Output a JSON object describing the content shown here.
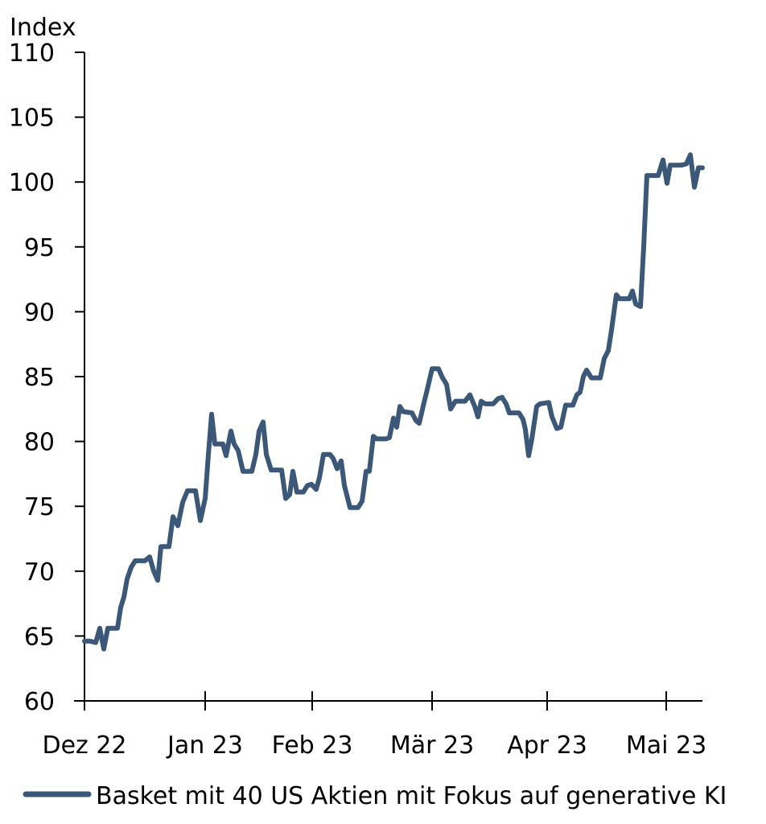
{
  "chart_data": {
    "type": "line",
    "title": "",
    "ylabel": "Index",
    "xlabel": "",
    "ylim": [
      60,
      110
    ],
    "yticks": [
      60,
      65,
      70,
      75,
      80,
      85,
      90,
      95,
      100,
      105,
      110
    ],
    "xtick_labels": [
      "Dez 22",
      "Jan 23",
      "Feb 23",
      "Mär 23",
      "Apr 23",
      "Mai 23"
    ],
    "grid": false,
    "legend_position": "bottom",
    "series": [
      {
        "name": "Basket mit 40 US Aktien mit Fokus auf generative KI",
        "color": "#3b5878",
        "points": [
          [
            105,
            64.6
          ],
          [
            112,
            64.6
          ],
          [
            119,
            64.5
          ],
          [
            124,
            65.6
          ],
          [
            129,
            64.0
          ],
          [
            134,
            65.6
          ],
          [
            146,
            65.6
          ],
          [
            150,
            67.2
          ],
          [
            154,
            68.0
          ],
          [
            158,
            69.4
          ],
          [
            163,
            70.3
          ],
          [
            168,
            70.8
          ],
          [
            180,
            70.8
          ],
          [
            186,
            71.1
          ],
          [
            191,
            70.0
          ],
          [
            196,
            69.3
          ],
          [
            200,
            71.9
          ],
          [
            210,
            71.9
          ],
          [
            215,
            74.2
          ],
          [
            221,
            73.5
          ],
          [
            227,
            75.3
          ],
          [
            233,
            76.2
          ],
          [
            243,
            76.2
          ],
          [
            249,
            73.9
          ],
          [
            255,
            75.6
          ],
          [
            259,
            79.0
          ],
          [
            263,
            82.1
          ],
          [
            267,
            79.8
          ],
          [
            277,
            79.8
          ],
          [
            281,
            78.9
          ],
          [
            287,
            80.8
          ],
          [
            291,
            79.8
          ],
          [
            296,
            79.3
          ],
          [
            302,
            77.7
          ],
          [
            313,
            77.7
          ],
          [
            318,
            79.0
          ],
          [
            322,
            80.8
          ],
          [
            327,
            81.5
          ],
          [
            331,
            79.0
          ],
          [
            337,
            77.8
          ],
          [
            350,
            77.8
          ],
          [
            355,
            75.6
          ],
          [
            360,
            75.9
          ],
          [
            364,
            77.7
          ],
          [
            369,
            76.1
          ],
          [
            377,
            76.1
          ],
          [
            382,
            76.6
          ],
          [
            387,
            76.7
          ],
          [
            393,
            76.3
          ],
          [
            397,
            77.2
          ],
          [
            402,
            79.0
          ],
          [
            410,
            79.0
          ],
          [
            414,
            78.7
          ],
          [
            419,
            77.9
          ],
          [
            424,
            78.5
          ],
          [
            428,
            76.6
          ],
          [
            435,
            74.9
          ],
          [
            445,
            74.9
          ],
          [
            450,
            75.4
          ],
          [
            455,
            77.7
          ],
          [
            459,
            77.7
          ],
          [
            464,
            80.4
          ],
          [
            468,
            80.2
          ],
          [
            480,
            80.2
          ],
          [
            484,
            80.3
          ],
          [
            489,
            81.8
          ],
          [
            493,
            81.1
          ],
          [
            497,
            82.7
          ],
          [
            501,
            82.3
          ],
          [
            512,
            82.2
          ],
          [
            517,
            81.6
          ],
          [
            521,
            81.4
          ],
          [
            527,
            83.0
          ],
          [
            531,
            84.0
          ],
          [
            537,
            85.6
          ],
          [
            545,
            85.6
          ],
          [
            550,
            84.9
          ],
          [
            555,
            84.4
          ],
          [
            560,
            82.5
          ],
          [
            566,
            83.1
          ],
          [
            578,
            83.1
          ],
          [
            584,
            83.6
          ],
          [
            590,
            82.7
          ],
          [
            594,
            81.9
          ],
          [
            598,
            83.1
          ],
          [
            603,
            82.9
          ],
          [
            613,
            82.9
          ],
          [
            619,
            83.3
          ],
          [
            624,
            83.4
          ],
          [
            629,
            82.9
          ],
          [
            633,
            82.2
          ],
          [
            645,
            82.2
          ],
          [
            650,
            81.7
          ],
          [
            653,
            80.9
          ],
          [
            657,
            78.9
          ],
          [
            661,
            80.2
          ],
          [
            667,
            82.7
          ],
          [
            671,
            82.9
          ],
          [
            682,
            83.0
          ],
          [
            686,
            81.9
          ],
          [
            692,
            81.0
          ],
          [
            697,
            81.1
          ],
          [
            703,
            82.8
          ],
          [
            712,
            82.8
          ],
          [
            717,
            83.6
          ],
          [
            721,
            83.8
          ],
          [
            725,
            85.0
          ],
          [
            729,
            85.5
          ],
          [
            735,
            84.9
          ],
          [
            746,
            84.9
          ],
          [
            751,
            86.4
          ],
          [
            756,
            87.0
          ],
          [
            760,
            88.6
          ],
          [
            766,
            91.3
          ],
          [
            770,
            91.0
          ],
          [
            778,
            91.0
          ],
          [
            782,
            91.0
          ],
          [
            786,
            91.6
          ],
          [
            790,
            90.6
          ],
          [
            796,
            90.4
          ],
          [
            800,
            95.0
          ],
          [
            804,
            100.5
          ],
          [
            818,
            100.5
          ],
          [
            824,
            101.7
          ],
          [
            829,
            99.9
          ],
          [
            833,
            101.3
          ],
          [
            847,
            101.3
          ],
          [
            853,
            101.4
          ],
          [
            858,
            102.1
          ],
          [
            863,
            99.6
          ],
          [
            868,
            101.1
          ],
          [
            873,
            101.1
          ]
        ]
      }
    ]
  },
  "axes": {
    "y_title": "Index",
    "y_tick_labels": [
      "60",
      "65",
      "70",
      "75",
      "80",
      "85",
      "90",
      "95",
      "100",
      "105",
      "110"
    ],
    "x_tick_labels": [
      "Dez 22",
      "Jan 23",
      "Feb 23",
      "Mär 23",
      "Apr 23",
      "Mai 23"
    ]
  },
  "legend": {
    "label": "Basket mit 40 US Aktien mit Fokus auf generative KI",
    "color": "#3b5878"
  }
}
